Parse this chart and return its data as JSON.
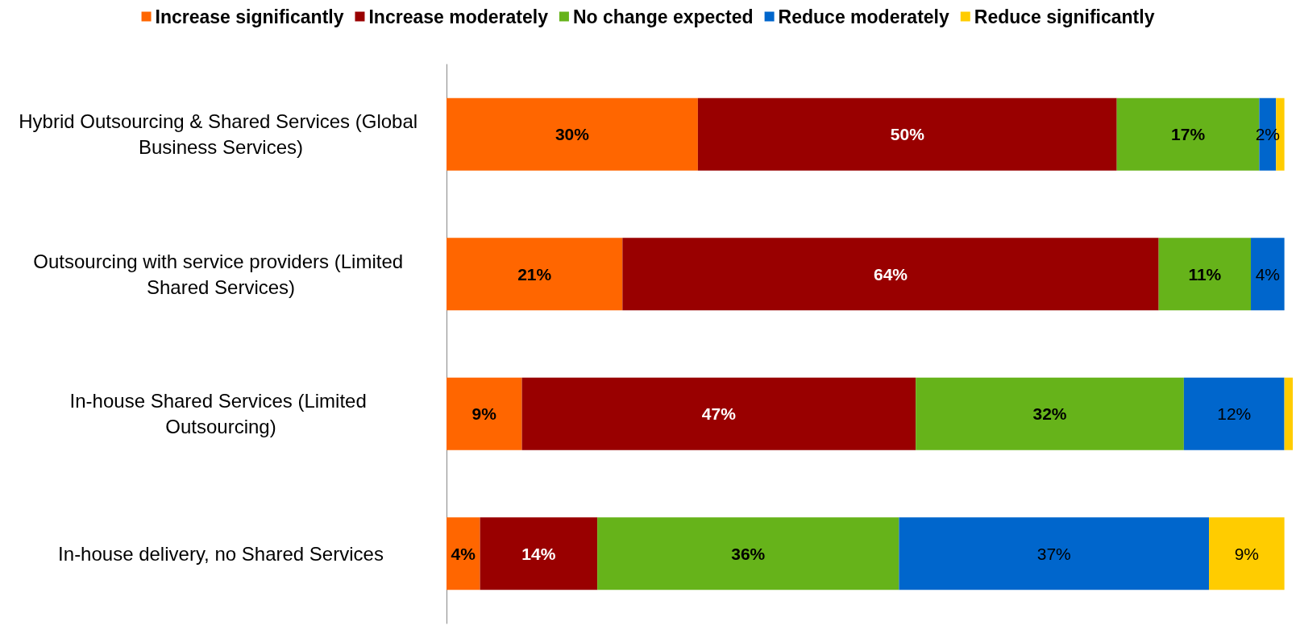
{
  "chart_data": {
    "type": "bar",
    "orientation": "horizontal",
    "stacked": true,
    "legend": "top",
    "marker": "square",
    "categories": [
      "Hybrid Outsourcing & Shared Services (Global Business Services)",
      "Outsourcing with service providers (Limited Shared Services)",
      "In-house Shared Services (Limited Outsourcing)",
      "In-house delivery, no Shared Services"
    ],
    "series": [
      {
        "name": "Increase significantly",
        "color": "#ff6600",
        "values": [
          30,
          21,
          9,
          4
        ],
        "value_labels": [
          "30%",
          "21%",
          "9%",
          "4%"
        ]
      },
      {
        "name": "Increase moderately",
        "color": "#990000",
        "values": [
          50,
          64,
          47,
          14
        ],
        "value_labels": [
          "50%",
          "64%",
          "47%",
          "14%"
        ]
      },
      {
        "name": "No change expected",
        "color": "#66b31a",
        "values": [
          17,
          11,
          32,
          36
        ],
        "value_labels": [
          "17%",
          "11%",
          "32%",
          "36%"
        ]
      },
      {
        "name": "Reduce moderately",
        "color": "#0066cc",
        "values": [
          2,
          4,
          12,
          37
        ],
        "value_labels": [
          "2%",
          "4%",
          "12%",
          "37%"
        ]
      },
      {
        "name": "Reduce significantly",
        "color": "#ffcc00",
        "values": [
          1,
          null,
          1,
          9
        ],
        "value_labels": [
          null,
          null,
          null,
          "9%"
        ]
      }
    ]
  }
}
